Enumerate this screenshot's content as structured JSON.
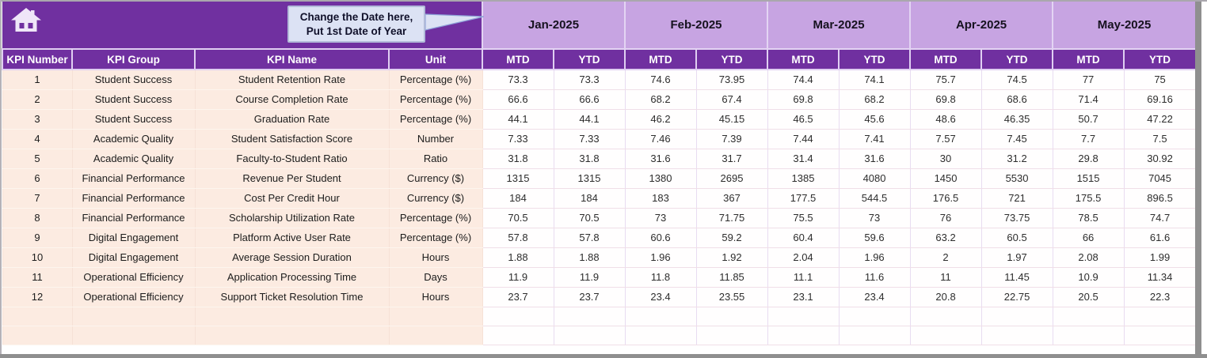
{
  "banner": {
    "callout_line1": "Change the Date here,",
    "callout_line2": "Put 1st Date of Year"
  },
  "table": {
    "headers": {
      "kpi_number": "KPI Number",
      "kpi_group": "KPI Group",
      "kpi_name": "KPI Name",
      "unit": "Unit",
      "mtd": "MTD",
      "ytd": "YTD"
    },
    "months": [
      "Jan-2025",
      "Feb-2025",
      "Mar-2025",
      "Apr-2025",
      "May-2025"
    ],
    "rows": [
      {
        "number": "1",
        "group": "Student Success",
        "name": "Student Retention Rate",
        "unit": "Percentage (%)",
        "values": [
          "73.3",
          "73.3",
          "74.6",
          "73.95",
          "74.4",
          "74.1",
          "75.7",
          "74.5",
          "77",
          "75"
        ]
      },
      {
        "number": "2",
        "group": "Student Success",
        "name": "Course Completion Rate",
        "unit": "Percentage (%)",
        "values": [
          "66.6",
          "66.6",
          "68.2",
          "67.4",
          "69.8",
          "68.2",
          "69.8",
          "68.6",
          "71.4",
          "69.16"
        ]
      },
      {
        "number": "3",
        "group": "Student Success",
        "name": "Graduation Rate",
        "unit": "Percentage (%)",
        "values": [
          "44.1",
          "44.1",
          "46.2",
          "45.15",
          "46.5",
          "45.6",
          "48.6",
          "46.35",
          "50.7",
          "47.22"
        ]
      },
      {
        "number": "4",
        "group": "Academic Quality",
        "name": "Student Satisfaction Score",
        "unit": "Number",
        "values": [
          "7.33",
          "7.33",
          "7.46",
          "7.39",
          "7.44",
          "7.41",
          "7.57",
          "7.45",
          "7.7",
          "7.5"
        ]
      },
      {
        "number": "5",
        "group": "Academic Quality",
        "name": "Faculty-to-Student Ratio",
        "unit": "Ratio",
        "values": [
          "31.8",
          "31.8",
          "31.6",
          "31.7",
          "31.4",
          "31.6",
          "30",
          "31.2",
          "29.8",
          "30.92"
        ]
      },
      {
        "number": "6",
        "group": "Financial Performance",
        "name": "Revenue Per Student",
        "unit": "Currency ($)",
        "values": [
          "1315",
          "1315",
          "1380",
          "2695",
          "1385",
          "4080",
          "1450",
          "5530",
          "1515",
          "7045"
        ]
      },
      {
        "number": "7",
        "group": "Financial Performance",
        "name": "Cost Per Credit Hour",
        "unit": "Currency ($)",
        "values": [
          "184",
          "184",
          "183",
          "367",
          "177.5",
          "544.5",
          "176.5",
          "721",
          "175.5",
          "896.5"
        ]
      },
      {
        "number": "8",
        "group": "Financial Performance",
        "name": "Scholarship Utilization Rate",
        "unit": "Percentage (%)",
        "values": [
          "70.5",
          "70.5",
          "73",
          "71.75",
          "75.5",
          "73",
          "76",
          "73.75",
          "78.5",
          "74.7"
        ]
      },
      {
        "number": "9",
        "group": "Digital Engagement",
        "name": "Platform Active User Rate",
        "unit": "Percentage (%)",
        "values": [
          "57.8",
          "57.8",
          "60.6",
          "59.2",
          "60.4",
          "59.6",
          "63.2",
          "60.5",
          "66",
          "61.6"
        ]
      },
      {
        "number": "10",
        "group": "Digital Engagement",
        "name": "Average Session Duration",
        "unit": "Hours",
        "values": [
          "1.88",
          "1.88",
          "1.96",
          "1.92",
          "2.04",
          "1.96",
          "2",
          "1.97",
          "2.08",
          "1.99"
        ]
      },
      {
        "number": "11",
        "group": "Operational Efficiency",
        "name": "Application Processing Time",
        "unit": "Days",
        "values": [
          "11.9",
          "11.9",
          "11.8",
          "11.85",
          "11.1",
          "11.6",
          "11",
          "11.45",
          "10.9",
          "11.34"
        ]
      },
      {
        "number": "12",
        "group": "Operational Efficiency",
        "name": "Support Ticket Resolution Time",
        "unit": "Hours",
        "values": [
          "23.7",
          "23.7",
          "23.4",
          "23.55",
          "23.1",
          "23.4",
          "20.8",
          "22.75",
          "20.5",
          "22.3"
        ]
      }
    ],
    "empty_rows": 2
  },
  "colors": {
    "header_purple": "#7030A0",
    "month_lavender": "#C7A4E2",
    "row_peach": "#FCEBE1",
    "callout_fill": "#DCE2F4"
  }
}
